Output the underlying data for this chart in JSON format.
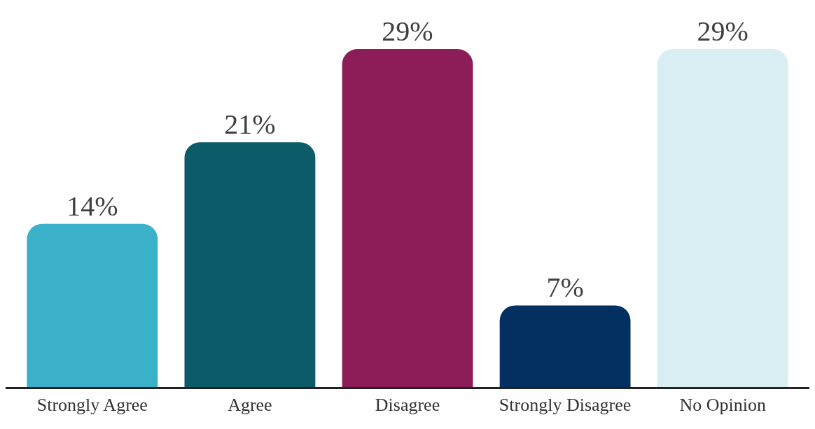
{
  "chart_data": {
    "type": "bar",
    "categories": [
      "Strongly Agree",
      "Agree",
      "Disagree",
      "Strongly Disagree",
      "No Opinion"
    ],
    "values": [
      14,
      21,
      29,
      7,
      29
    ],
    "value_labels": [
      "14%",
      "21%",
      "29%",
      "7%",
      "29%"
    ],
    "colors": [
      "#3ab0c9",
      "#0b5c68",
      "#8d1d58",
      "#033061",
      "#d8eef3"
    ],
    "legend": false,
    "tick_labels": "x"
  }
}
